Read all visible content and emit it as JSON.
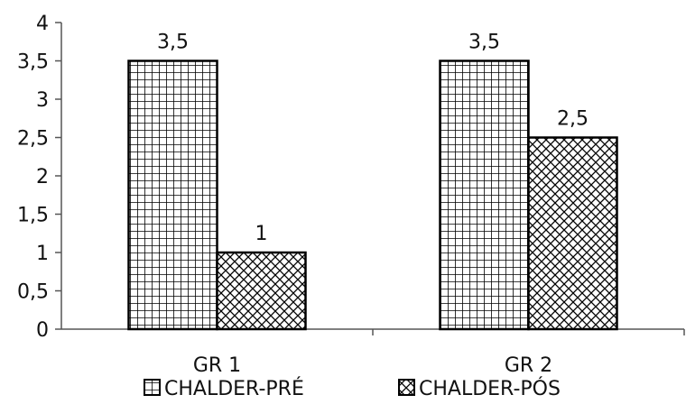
{
  "chart_data": {
    "type": "bar",
    "categories": [
      "GR 1",
      "GR 2"
    ],
    "series": [
      {
        "name": "CHALDER-PRÉ",
        "values": [
          3.5,
          3.5
        ],
        "labels": [
          "3,5",
          "3,5"
        ],
        "pattern": "grid"
      },
      {
        "name": "CHALDER-PÓS",
        "values": [
          1,
          2.5
        ],
        "labels": [
          "1",
          "2,5"
        ],
        "pattern": "crosshatch"
      }
    ],
    "ylim": [
      0,
      4
    ],
    "yticks": [
      0,
      0.5,
      1,
      1.5,
      2,
      2.5,
      3,
      3.5,
      4
    ],
    "ytick_labels": [
      "0",
      "0,5",
      "1",
      "1,5",
      "2",
      "2,5",
      "3",
      "3,5",
      "4"
    ],
    "grid": false,
    "legend_position": "bottom",
    "colors": {
      "bar_stroke": "#000000",
      "axis": "#555555",
      "text": "#111111",
      "background": "#ffffff"
    }
  }
}
